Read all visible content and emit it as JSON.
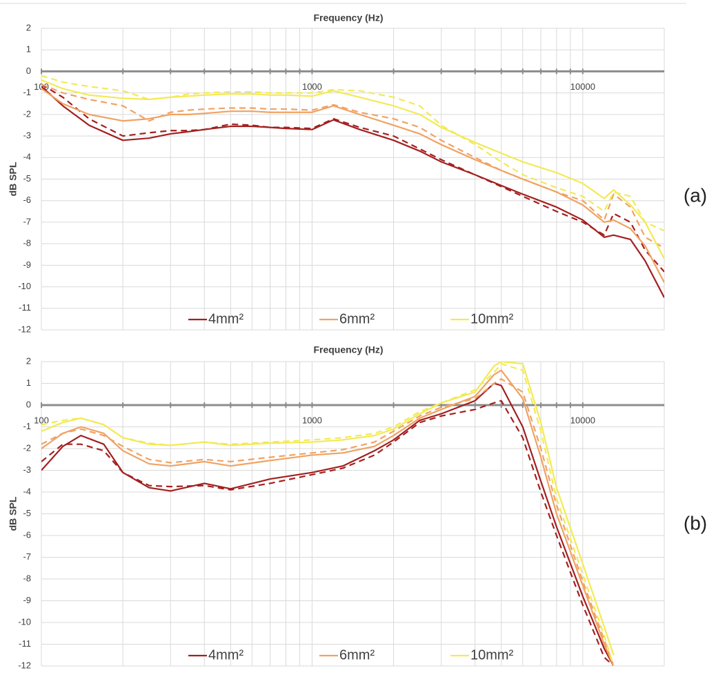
{
  "chart_data": [
    {
      "type": "line",
      "title": "Frequency (Hz)",
      "ylabel": "dB SPL",
      "panel": "(a)",
      "xscale": "log",
      "xlim": [
        100,
        20000
      ],
      "xticks": [
        100,
        1000,
        10000
      ],
      "x_minor_grid": [
        200,
        300,
        400,
        500,
        600,
        700,
        800,
        900,
        2000,
        3000,
        4000,
        5000,
        6000,
        7000,
        8000,
        9000
      ],
      "ylim": [
        -12,
        2
      ],
      "yticks": [
        -12,
        -11,
        -10,
        -9,
        -8,
        -7,
        -6,
        -5,
        -4,
        -3,
        -2,
        -1,
        0,
        1,
        2
      ],
      "grid": true,
      "x": [
        100,
        120,
        150,
        200,
        250,
        300,
        350,
        400,
        500,
        600,
        700,
        800,
        1000,
        1200,
        1500,
        2000,
        2500,
        3000,
        4000,
        5000,
        6000,
        8000,
        10000,
        12000,
        13000,
        15000,
        17000,
        20000
      ],
      "series": [
        {
          "name": "4mm²",
          "color": "#a31f1f",
          "dash": false,
          "values": [
            -0.7,
            -1.6,
            -2.5,
            -3.2,
            -3.1,
            -2.9,
            -2.8,
            -2.7,
            -2.55,
            -2.55,
            -2.6,
            -2.65,
            -2.7,
            -2.25,
            -2.7,
            -3.2,
            -3.7,
            -4.2,
            -4.8,
            -5.3,
            -5.7,
            -6.3,
            -6.9,
            -7.7,
            -7.6,
            -7.8,
            -8.8,
            -10.5
          ]
        },
        {
          "color": "#a31f1f",
          "dash": true,
          "values": [
            -0.6,
            -1.2,
            -2.2,
            -3.0,
            -2.85,
            -2.75,
            -2.75,
            -2.7,
            -2.45,
            -2.5,
            -2.6,
            -2.6,
            -2.65,
            -2.2,
            -2.6,
            -3.0,
            -3.6,
            -4.1,
            -4.8,
            -5.35,
            -5.8,
            -6.5,
            -7.0,
            -7.6,
            -6.6,
            -7.0,
            -8.3,
            -9.3
          ]
        },
        {
          "name": "6mm²",
          "color": "#f0a262",
          "dash": false,
          "values": [
            -0.8,
            -1.5,
            -2.0,
            -2.3,
            -2.2,
            -2.0,
            -2.0,
            -1.95,
            -1.85,
            -1.85,
            -1.9,
            -1.9,
            -1.9,
            -1.6,
            -2.0,
            -2.5,
            -2.9,
            -3.4,
            -4.1,
            -4.6,
            -5.0,
            -5.6,
            -6.2,
            -7.0,
            -6.9,
            -7.3,
            -8.1,
            -9.8
          ]
        },
        {
          "color": "#f0a262",
          "dash": true,
          "values": [
            -0.6,
            -1.0,
            -1.3,
            -1.6,
            -2.3,
            -1.9,
            -1.8,
            -1.75,
            -1.7,
            -1.7,
            -1.75,
            -1.75,
            -1.8,
            -1.55,
            -1.9,
            -2.2,
            -2.6,
            -3.2,
            -4.0,
            -4.6,
            -5.0,
            -5.6,
            -6.0,
            -6.9,
            -5.7,
            -6.3,
            -7.7,
            -8.2
          ]
        },
        {
          "name": "10mm²",
          "color": "#f2ea55",
          "dash": false,
          "values": [
            -0.4,
            -0.8,
            -1.1,
            -1.25,
            -1.3,
            -1.2,
            -1.15,
            -1.1,
            -1.05,
            -1.05,
            -1.1,
            -1.1,
            -1.15,
            -0.9,
            -1.2,
            -1.6,
            -2.0,
            -2.6,
            -3.3,
            -3.8,
            -4.2,
            -4.7,
            -5.2,
            -5.9,
            -5.5,
            -6.2,
            -7.0,
            -8.7
          ]
        },
        {
          "color": "#f2ea55",
          "dash": true,
          "values": [
            -0.2,
            -0.5,
            -0.7,
            -0.9,
            -1.3,
            -1.2,
            -1.05,
            -1.0,
            -0.95,
            -0.95,
            -1.0,
            -1.0,
            -1.0,
            -0.85,
            -0.9,
            -1.2,
            -1.6,
            -2.5,
            -3.4,
            -4.2,
            -4.8,
            -5.4,
            -5.8,
            -6.5,
            -5.6,
            -5.8,
            -7.0,
            -7.4
          ]
        }
      ]
    },
    {
      "type": "line",
      "title": "Frequency (Hz)",
      "ylabel": "dB SPL",
      "panel": "(b)",
      "xscale": "log",
      "xlim": [
        100,
        20000
      ],
      "xticks": [
        100,
        1000,
        10000
      ],
      "x_minor_grid": [
        200,
        300,
        400,
        500,
        600,
        700,
        800,
        900,
        2000,
        3000,
        4000,
        5000,
        6000,
        7000,
        8000,
        9000
      ],
      "ylim": [
        -12,
        2
      ],
      "yticks": [
        -12,
        -11,
        -10,
        -9,
        -8,
        -7,
        -6,
        -5,
        -4,
        -3,
        -2,
        -1,
        0,
        1,
        2
      ],
      "grid": true,
      "x": [
        100,
        120,
        140,
        170,
        200,
        250,
        300,
        400,
        500,
        700,
        1000,
        1300,
        1700,
        2000,
        2500,
        3000,
        4000,
        4700,
        5000,
        6000,
        7000,
        8000,
        10000,
        12000,
        13000
      ],
      "series": [
        {
          "name": "4mm²",
          "color": "#a31f1f",
          "dash": false,
          "values": [
            -3.0,
            -1.9,
            -1.4,
            -1.8,
            -3.1,
            -3.8,
            -3.95,
            -3.6,
            -3.85,
            -3.4,
            -3.1,
            -2.8,
            -2.1,
            -1.6,
            -0.7,
            -0.4,
            0.2,
            1.0,
            0.9,
            -1.0,
            -3.5,
            -5.6,
            -8.8,
            -11.2,
            -12
          ]
        },
        {
          "color": "#a31f1f",
          "dash": true,
          "values": [
            -2.6,
            -1.8,
            -1.8,
            -2.1,
            -3.1,
            -3.7,
            -3.75,
            -3.7,
            -3.9,
            -3.6,
            -3.2,
            -2.9,
            -2.3,
            -1.7,
            -0.8,
            -0.5,
            -0.2,
            0.1,
            0.2,
            -1.5,
            -4.0,
            -6.0,
            -9.2,
            -11.6,
            -12
          ]
        },
        {
          "name": "6mm²",
          "color": "#f0a262",
          "dash": false,
          "values": [
            -2.0,
            -1.3,
            -1.0,
            -1.3,
            -2.1,
            -2.7,
            -2.8,
            -2.6,
            -2.8,
            -2.55,
            -2.3,
            -2.2,
            -1.9,
            -1.4,
            -0.6,
            -0.2,
            0.4,
            1.4,
            1.6,
            0.3,
            -2.4,
            -5.0,
            -8.3,
            -11.0,
            -12
          ]
        },
        {
          "color": "#f0a262",
          "dash": true,
          "values": [
            -1.8,
            -1.3,
            -1.1,
            -1.4,
            -1.9,
            -2.5,
            -2.65,
            -2.5,
            -2.6,
            -2.4,
            -2.2,
            -2.05,
            -1.7,
            -1.2,
            -0.5,
            -0.1,
            0.3,
            1.0,
            1.2,
            0.6,
            -2.0,
            -4.6,
            -8.1,
            -10.8,
            -12
          ]
        },
        {
          "name": "10mm²",
          "color": "#f2ea55",
          "dash": false,
          "values": [
            -1.2,
            -0.8,
            -0.6,
            -0.9,
            -1.5,
            -1.8,
            -1.85,
            -1.7,
            -1.85,
            -1.75,
            -1.7,
            -1.6,
            -1.4,
            -1.1,
            -0.4,
            0.1,
            0.6,
            1.8,
            2.0,
            1.9,
            -0.8,
            -3.8,
            -7.3,
            -10.2,
            -11.5
          ]
        },
        {
          "color": "#f2ea55",
          "dash": true,
          "values": [
            -0.9,
            -0.7,
            -0.6,
            -0.9,
            -1.5,
            -1.75,
            -1.85,
            -1.7,
            -1.8,
            -1.7,
            -1.6,
            -1.5,
            -1.3,
            -1.0,
            -0.3,
            0.1,
            0.7,
            1.5,
            1.9,
            1.6,
            -1.2,
            -4.3,
            -7.8,
            -10.6,
            -12
          ]
        }
      ]
    }
  ]
}
